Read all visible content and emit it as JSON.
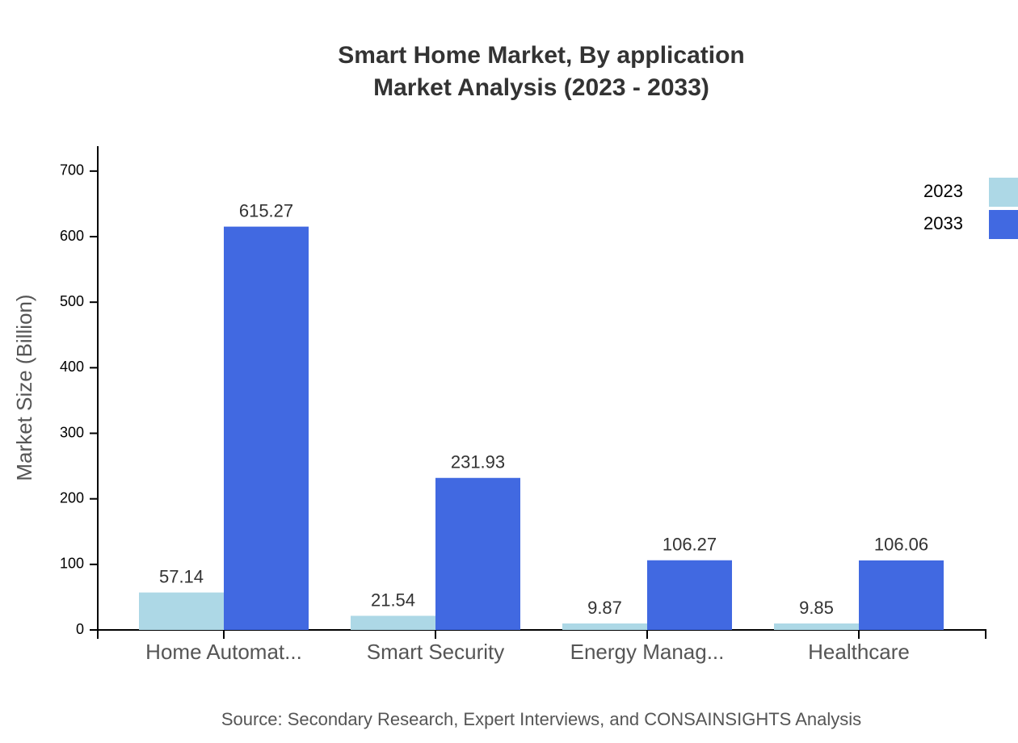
{
  "chart_data": {
    "type": "bar",
    "title": "Smart Home Market, By application",
    "subtitle": "Market Analysis (2023 - 2033)",
    "y_label": "Market Size (Billion)",
    "source": "Source: Secondary Research, Expert Interviews, and CONSAINSIGHTS Analysis",
    "categories": [
      "Home Automat...",
      "Smart Security",
      "Energy Manag...",
      "Healthcare"
    ],
    "series": [
      {
        "name": "2023",
        "color": "#add8e6",
        "values": [
          57.14,
          21.54,
          9.87,
          9.85
        ]
      },
      {
        "name": "2033",
        "color": "#4169e1",
        "values": [
          615.27,
          231.93,
          106.27,
          106.06
        ]
      }
    ],
    "ylim": [
      0,
      738
    ],
    "yticks": [
      0,
      100,
      200,
      300,
      400,
      500,
      600,
      700
    ],
    "legend": "top-right"
  }
}
